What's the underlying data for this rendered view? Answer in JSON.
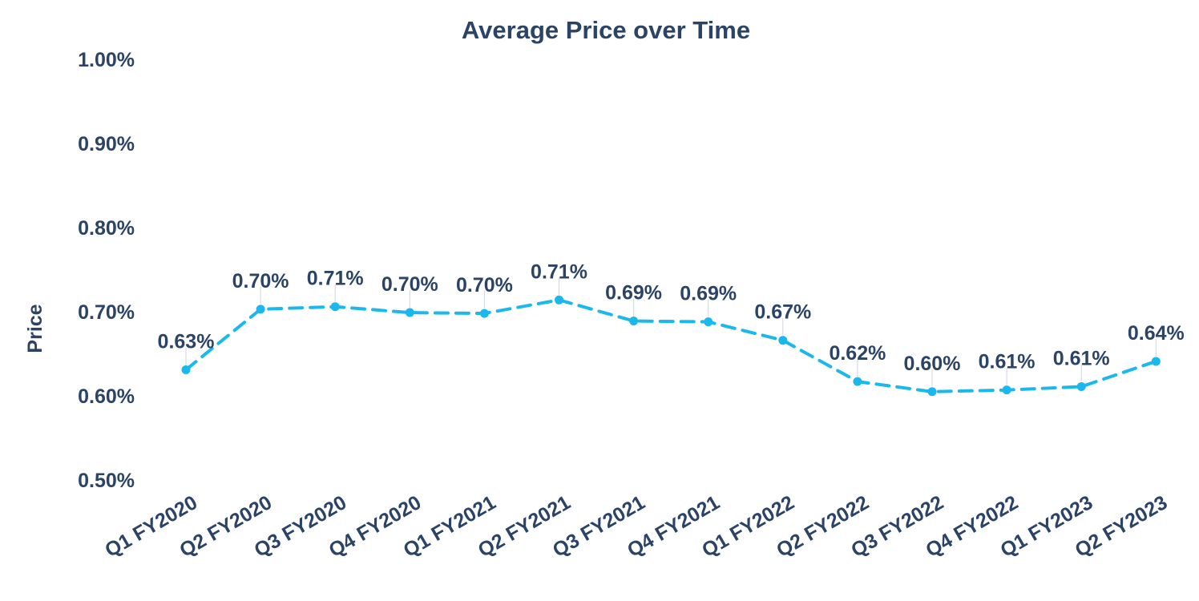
{
  "chart_data": {
    "type": "line",
    "title": "Average Price over Time",
    "xlabel": "",
    "ylabel": "Price",
    "ylim": [
      0.5,
      1.0
    ],
    "yticks": [
      "0.50%",
      "0.60%",
      "0.70%",
      "0.80%",
      "0.90%",
      "1.00%"
    ],
    "grid": false,
    "line_color": "#1ab8ec",
    "text_color": "#2b4366",
    "categories": [
      "Q1 FY2020",
      "Q2 FY2020",
      "Q3 FY2020",
      "Q4 FY2020",
      "Q1 FY2021",
      "Q2 FY2021",
      "Q3 FY2021",
      "Q4 FY2021",
      "Q1 FY2022",
      "Q2 FY2022",
      "Q3 FY2022",
      "Q4 FY2022",
      "Q1 FY2023",
      "Q2 FY2023"
    ],
    "values": [
      0.631,
      0.703,
      0.706,
      0.699,
      0.698,
      0.714,
      0.689,
      0.688,
      0.666,
      0.617,
      0.605,
      0.607,
      0.611,
      0.641
    ],
    "data_labels": [
      "0.63%",
      "0.70%",
      "0.71%",
      "0.70%",
      "0.70%",
      "0.71%",
      "0.69%",
      "0.69%",
      "0.67%",
      "0.62%",
      "0.60%",
      "0.61%",
      "0.61%",
      "0.64%"
    ]
  }
}
